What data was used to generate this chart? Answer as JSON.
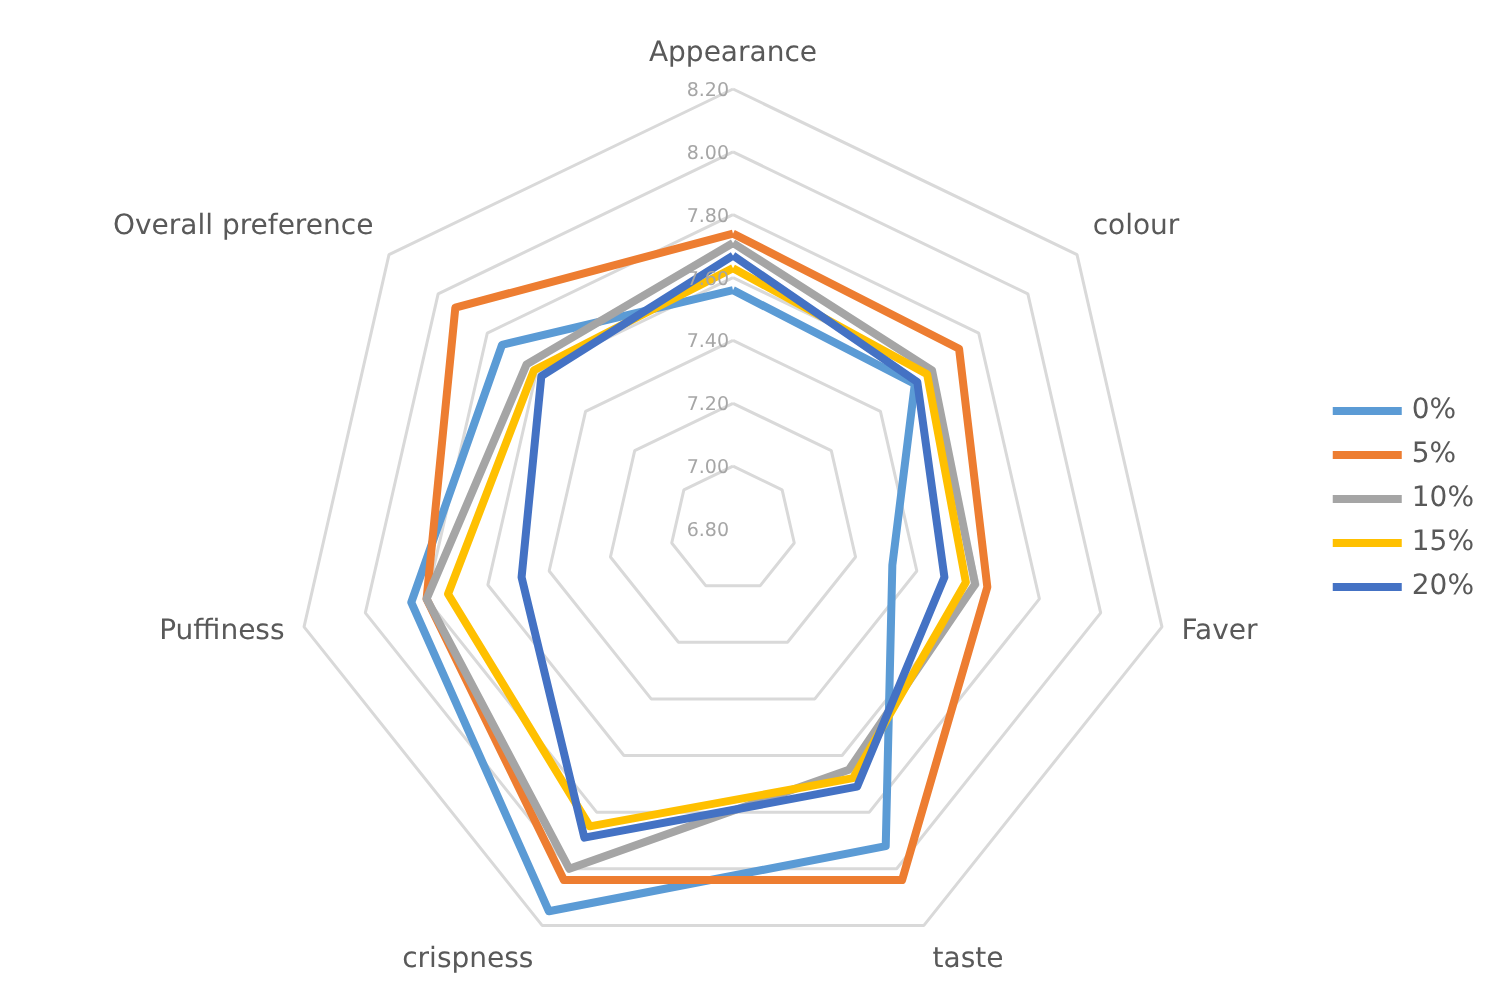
{
  "chart_data": {
    "type": "radar",
    "categories": [
      "Appearance",
      "colour",
      "Faver",
      "taste",
      "crispness",
      "Puffiness",
      "Overall preference"
    ],
    "ylim": [
      6.8,
      8.2
    ],
    "yticks": [
      {
        "value": 6.8,
        "label": "6.80"
      },
      {
        "value": 7.0,
        "label": "7.00"
      },
      {
        "value": 7.2,
        "label": "7.20"
      },
      {
        "value": 7.4,
        "label": "7.40"
      },
      {
        "value": 7.6,
        "label": "7.60"
      },
      {
        "value": 7.8,
        "label": "7.80"
      },
      {
        "value": 8.0,
        "label": "8.00"
      },
      {
        "value": 8.2,
        "label": "8.20"
      }
    ],
    "grid": true,
    "legend": "right",
    "marker": "none",
    "line_style": "solid",
    "series": [
      {
        "name": "0%",
        "color": "#5b9bd5",
        "values": [
          7.56,
          7.54,
          7.32,
          7.92,
          8.15,
          7.85,
          7.74
        ]
      },
      {
        "name": "5%",
        "color": "#ed7d31",
        "values": [
          7.74,
          7.72,
          7.63,
          8.04,
          8.04,
          7.8,
          7.93
        ]
      },
      {
        "name": "10%",
        "color": "#a5a5a5",
        "values": [
          7.71,
          7.61,
          7.59,
          7.65,
          8.0,
          7.8,
          7.64
        ]
      },
      {
        "name": "15%",
        "color": "#ffc000",
        "values": [
          7.63,
          7.59,
          7.56,
          7.68,
          7.85,
          7.73,
          7.61
        ]
      },
      {
        "name": "20%",
        "color": "#4472c4",
        "values": [
          7.67,
          7.55,
          7.49,
          7.71,
          7.89,
          7.49,
          7.58
        ]
      }
    ]
  }
}
